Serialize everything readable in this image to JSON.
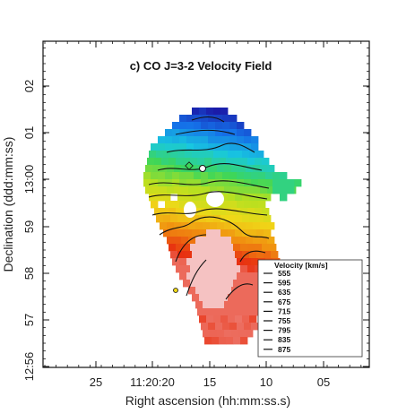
{
  "chart_data": {
    "type": "heatmap",
    "title": "c) CO J=3-2 Velocity Field",
    "xlabel": "Right ascension (hh:mm:ss.s)",
    "ylabel": "Declination (ddd:mm:ss)",
    "x_ticks": [
      "25",
      "11:20:20",
      "15",
      "10",
      "05"
    ],
    "y_ticks": [
      "12:56",
      "57",
      "58",
      "59",
      "13:00",
      "01",
      "02"
    ],
    "x_tick_values_s": [
      25,
      20,
      15,
      10,
      5
    ],
    "y_tick_values_min": [
      56,
      57,
      58,
      59,
      60,
      61,
      62
    ],
    "x_range_s": [
      29.7,
      2.1
    ],
    "y_range_min": [
      55.7,
      62.9
    ],
    "legend": {
      "title": "Velocity [km/s]",
      "placement": "lower-right",
      "entries": [
        "555",
        "595",
        "635",
        "675",
        "715",
        "755",
        "795",
        "835",
        "875"
      ]
    },
    "contour_levels": [
      555,
      595,
      635,
      675,
      715,
      755,
      795,
      835,
      875
    ],
    "colormap": [
      "#1a1aa8",
      "#1570e8",
      "#18c8e0",
      "#3cd65a",
      "#b8e020",
      "#f0d818",
      "#f09010",
      "#e83010",
      "#f0a0a0"
    ],
    "velocity_range_kms": [
      555,
      875
    ],
    "gradient": "blue (low velocity) in the north to red (high velocity) in the south"
  }
}
